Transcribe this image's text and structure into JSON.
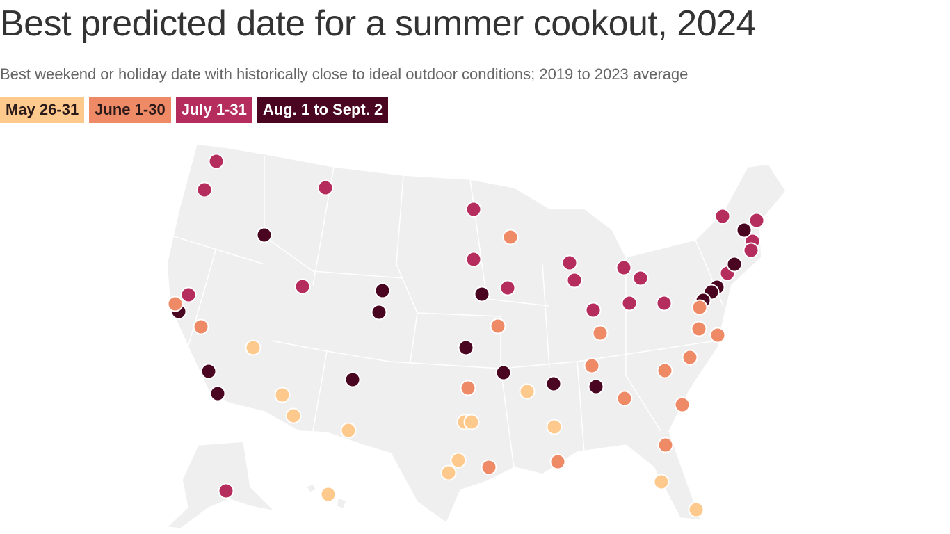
{
  "header": {
    "title": "Best predicted date for a summer cookout, 2024",
    "subtitle": "Best weekend or holiday date with historically close to ideal outdoor conditions; 2019 to 2023 average"
  },
  "legend": [
    {
      "label": "May 26-31",
      "color": "#fec98c"
    },
    {
      "label": "June 1-30",
      "color": "#ef8a66"
    },
    {
      "label": "July 1-31",
      "color": "#b52d5d"
    },
    {
      "label": "Aug. 1 to Sept. 2",
      "color": "#4a0620"
    }
  ]
}
